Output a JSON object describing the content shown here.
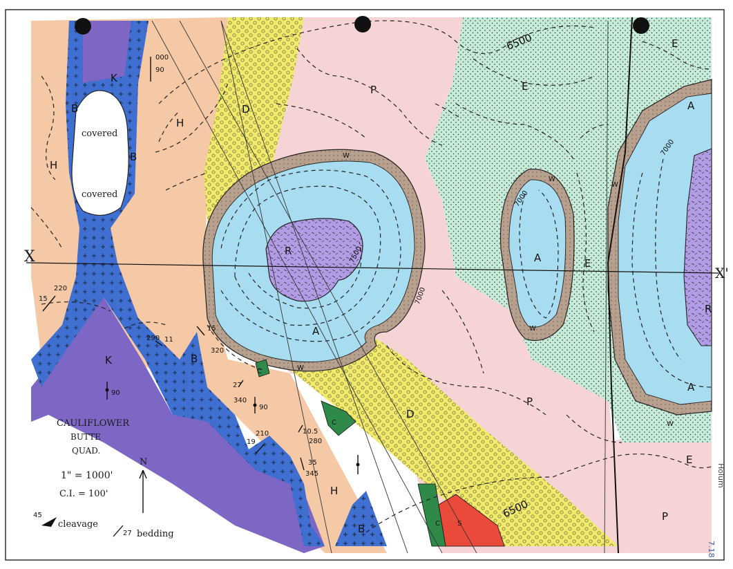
{
  "legend": {
    "title_line1": "CAULIFLOWER",
    "title_line2": "BUTTE",
    "title_line3": "QUAD.",
    "scale": "1\" = 1000'",
    "contour_interval": "C.I. = 100'",
    "north": "N",
    "cleavage_value": "45",
    "cleavage_label": "cleavage",
    "bedding_value": "27",
    "bedding_label": "bedding"
  },
  "section": {
    "left": "X",
    "right": "X'"
  },
  "contours": {
    "c6500_top": "6500",
    "c6500_bottom": "6500",
    "c7000_a": "7000",
    "c7000_b": "7000",
    "c7000_c": "7000",
    "c7500": "7500"
  },
  "units": {
    "K1": "K",
    "K2": "K",
    "B1": "B",
    "B2": "B",
    "B3": "B",
    "B4": "B",
    "H1": "H",
    "H2": "H",
    "H3": "H",
    "covered1": "covered",
    "covered2": "covered",
    "D1": "D",
    "D2": "D",
    "P1": "P",
    "P2": "P",
    "P3": "P",
    "W1": "W",
    "W2": "W",
    "W3": "W",
    "W4": "W",
    "W5": "W",
    "W6": "W",
    "A1": "A",
    "A2": "A",
    "A3": "A",
    "A4": "A",
    "R1": "R",
    "R2": "R",
    "E1": "E",
    "E2": "E",
    "E3": "E",
    "E4": "E",
    "C1": "C",
    "C2": "C",
    "C3": "C",
    "S1": "S"
  },
  "attitudes": {
    "a000": "000",
    "a90a": "90",
    "a220": "220",
    "a15a": "15",
    "a290": "290",
    "a11": "11",
    "a15b": "15",
    "a320": "320",
    "a27": "27",
    "a340": "340",
    "a90b": "90",
    "a90c": "90",
    "a210": "210",
    "a19": "19",
    "a105": "10.5",
    "a280": "280",
    "a35": "35",
    "a345": "345"
  },
  "margin": {
    "author": "Holum",
    "page": "7.18"
  },
  "colors": {
    "K_purple": "#7d66c4",
    "B_blue": "#3f6fd0",
    "H_orange": "#f6c9a6",
    "D_yellow": "#f2ea6a",
    "P_pink": "#f6d4d6",
    "W_brown": "#b39a86",
    "A_cyan": "#a8dcf0",
    "R_lavender": "#b39ce6",
    "E_green": "#c6ebd8",
    "C_green": "#2f8a4a",
    "S_red": "#ea4a3a"
  }
}
